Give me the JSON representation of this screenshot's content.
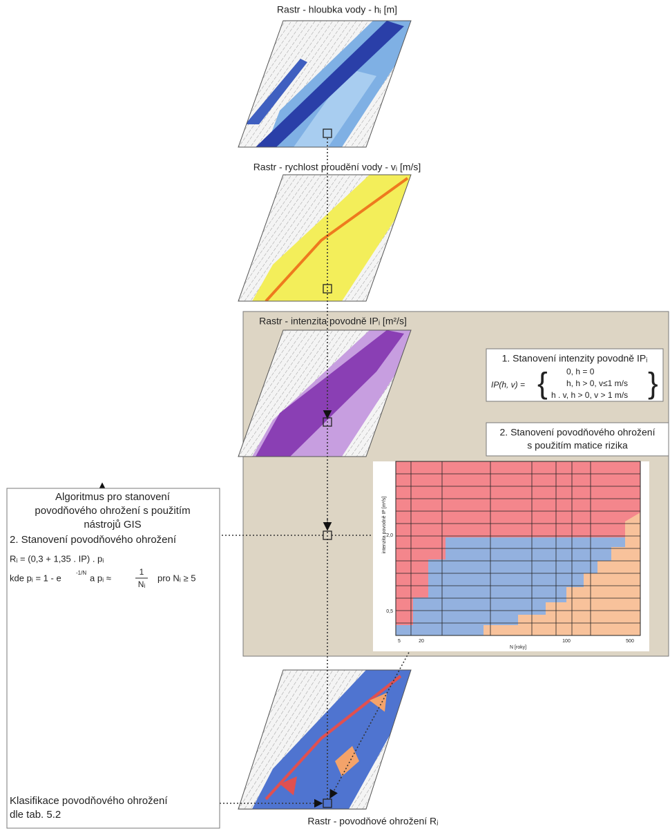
{
  "layers": [
    {
      "label": "Rastr - hloubka vody - hᵢ [m]"
    },
    {
      "label": "Rastr - rychlost proudění vody - vᵢ [m/s]"
    },
    {
      "label": "Rastr - intenzita povodně IPᵢ [m²/s]"
    },
    {
      "label": "Rastr - povodňové ohrožení Rⱼ"
    }
  ],
  "intensity_box": {
    "title": "1. Stanovení intenzity povodně IPᵢ",
    "lhs": "IP(h, v) =",
    "cases": [
      "0,  h = 0",
      "h,  h > 0, v≤1 m/s",
      "h . v,  h > 0, v > 1 m/s"
    ]
  },
  "matrix_box": {
    "lines": [
      "2. Stanovení povodňového ohrožení",
      "s použitím matice rizika"
    ]
  },
  "matrix": {
    "y_label": "intenzita povodně IP [m²/s]",
    "y_ticks": [
      "2,0",
      "0,5"
    ],
    "x_label": "N [roky]",
    "x_ticks": [
      "5",
      "20",
      "100",
      "500"
    ]
  },
  "algorithm_box": {
    "title_lines": [
      "Algoritmus pro stanovení",
      "povodňového ohrožení s použitím",
      "nástrojů GIS"
    ],
    "step": "2. Stanovení povodňového ohrožení",
    "formula": "Rᵢ = (0,3 + 1,35 . IP) . pᵢ",
    "where": "kde pᵢ = 1 - e",
    "exponent": "-1/N",
    "and": "a  pᵢ ≈",
    "numerator": "1",
    "denominator": "Nᵢ",
    "condition": "pro Nᵢ ≥ 5",
    "classification_lines": [
      "Klasifikace povodňového ohrožení",
      "dle tab. 5.2"
    ]
  }
}
